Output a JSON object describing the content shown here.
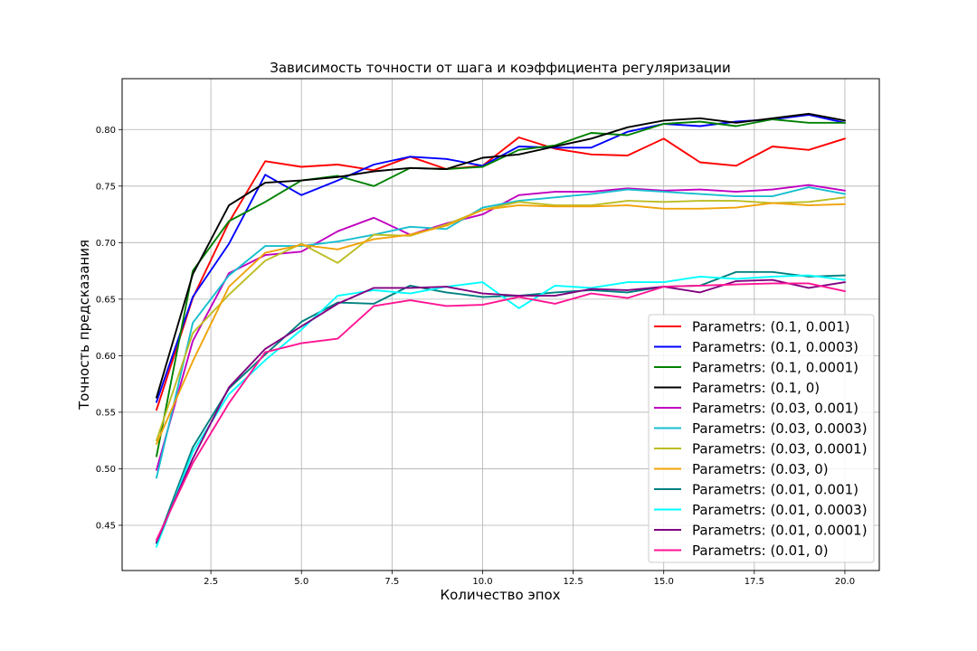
{
  "chart_data": {
    "type": "line",
    "title": "Зависимость точности от шага и коэффициента регуляризации",
    "xlabel": "Количество эпох",
    "ylabel": "Точность предсказания",
    "xlim": [
      0.05,
      20.95
    ],
    "ylim": [
      0.41,
      0.845
    ],
    "xticks": [
      2.5,
      5.0,
      7.5,
      10.0,
      12.5,
      15.0,
      17.5,
      20.0
    ],
    "xtick_labels": [
      "2.5",
      "5.0",
      "7.5",
      "10.0",
      "12.5",
      "15.0",
      "17.5",
      "20.0"
    ],
    "yticks": [
      0.45,
      0.5,
      0.55,
      0.6,
      0.65,
      0.7,
      0.75,
      0.8
    ],
    "ytick_labels": [
      "0.45",
      "0.50",
      "0.55",
      "0.60",
      "0.65",
      "0.70",
      "0.75",
      "0.80"
    ],
    "grid": true,
    "legend_position": "lower-right",
    "x": [
      1,
      2,
      3,
      4,
      5,
      6,
      7,
      8,
      9,
      10,
      11,
      12,
      13,
      14,
      15,
      16,
      17,
      18,
      19,
      20
    ],
    "series": [
      {
        "name": "Parametrs: (0.1, 0.001)",
        "color": "#ff0000",
        "values": [
          0.552,
          0.651,
          0.718,
          0.772,
          0.767,
          0.769,
          0.764,
          0.776,
          0.765,
          0.768,
          0.793,
          0.783,
          0.778,
          0.777,
          0.792,
          0.771,
          0.768,
          0.785,
          0.782,
          0.792
        ]
      },
      {
        "name": "Parametrs: (0.1, 0.0003)",
        "color": "#0000ff",
        "values": [
          0.559,
          0.652,
          0.699,
          0.76,
          0.742,
          0.755,
          0.769,
          0.776,
          0.774,
          0.768,
          0.785,
          0.784,
          0.784,
          0.798,
          0.805,
          0.803,
          0.807,
          0.809,
          0.813,
          0.806
        ]
      },
      {
        "name": "Parametrs: (0.1, 0.0001)",
        "color": "#008000",
        "values": [
          0.511,
          0.675,
          0.719,
          0.736,
          0.755,
          0.759,
          0.75,
          0.766,
          0.765,
          0.767,
          0.782,
          0.786,
          0.797,
          0.795,
          0.805,
          0.807,
          0.803,
          0.809,
          0.806,
          0.806
        ]
      },
      {
        "name": "Parametrs: (0.1, 0)",
        "color": "#000000",
        "values": [
          0.563,
          0.672,
          0.733,
          0.753,
          0.755,
          0.758,
          0.763,
          0.766,
          0.765,
          0.775,
          0.778,
          0.785,
          0.792,
          0.802,
          0.808,
          0.81,
          0.806,
          0.81,
          0.814,
          0.808
        ]
      },
      {
        "name": "Parametrs: (0.03, 0.001)",
        "color": "#c000c0",
        "values": [
          0.499,
          0.613,
          0.673,
          0.689,
          0.692,
          0.71,
          0.722,
          0.707,
          0.717,
          0.725,
          0.742,
          0.745,
          0.745,
          0.748,
          0.746,
          0.747,
          0.745,
          0.747,
          0.751,
          0.746
        ]
      },
      {
        "name": "Parametrs: (0.03, 0.0003)",
        "color": "#17becf",
        "values": [
          0.492,
          0.629,
          0.671,
          0.697,
          0.697,
          0.701,
          0.707,
          0.714,
          0.712,
          0.731,
          0.737,
          0.74,
          0.743,
          0.747,
          0.745,
          0.743,
          0.741,
          0.741,
          0.749,
          0.743
        ]
      },
      {
        "name": "Parametrs: (0.03, 0.0001)",
        "color": "#bcbd22",
        "values": [
          0.525,
          0.62,
          0.654,
          0.684,
          0.699,
          0.682,
          0.707,
          0.706,
          0.716,
          0.729,
          0.736,
          0.733,
          0.733,
          0.737,
          0.736,
          0.737,
          0.737,
          0.735,
          0.736,
          0.74
        ]
      },
      {
        "name": "Parametrs: (0.03, 0)",
        "color": "#f0a30a",
        "values": [
          0.522,
          0.595,
          0.661,
          0.691,
          0.698,
          0.694,
          0.703,
          0.707,
          0.715,
          0.729,
          0.733,
          0.732,
          0.732,
          0.733,
          0.73,
          0.73,
          0.731,
          0.735,
          0.733,
          0.734
        ]
      },
      {
        "name": "Parametrs: (0.01, 0.001)",
        "color": "#008080",
        "values": [
          0.434,
          0.519,
          0.571,
          0.601,
          0.63,
          0.647,
          0.646,
          0.662,
          0.656,
          0.652,
          0.653,
          0.656,
          0.658,
          0.656,
          0.661,
          0.662,
          0.674,
          0.674,
          0.67,
          0.671
        ]
      },
      {
        "name": "Parametrs: (0.01, 0.0003)",
        "color": "#00ffff",
        "values": [
          0.431,
          0.515,
          0.566,
          0.596,
          0.623,
          0.653,
          0.658,
          0.655,
          0.661,
          0.665,
          0.642,
          0.662,
          0.66,
          0.665,
          0.665,
          0.67,
          0.668,
          0.67,
          0.671,
          0.667
        ]
      },
      {
        "name": "Parametrs: (0.01, 0.0001)",
        "color": "#800080",
        "values": [
          0.435,
          0.509,
          0.572,
          0.606,
          0.626,
          0.646,
          0.66,
          0.66,
          0.661,
          0.655,
          0.653,
          0.653,
          0.659,
          0.658,
          0.661,
          0.656,
          0.666,
          0.667,
          0.66,
          0.665
        ]
      },
      {
        "name": "Parametrs: (0.01, 0)",
        "color": "#ff1493",
        "values": [
          0.437,
          0.505,
          0.558,
          0.603,
          0.611,
          0.615,
          0.644,
          0.649,
          0.644,
          0.645,
          0.652,
          0.646,
          0.655,
          0.651,
          0.661,
          0.662,
          0.663,
          0.664,
          0.664,
          0.657
        ]
      }
    ]
  }
}
